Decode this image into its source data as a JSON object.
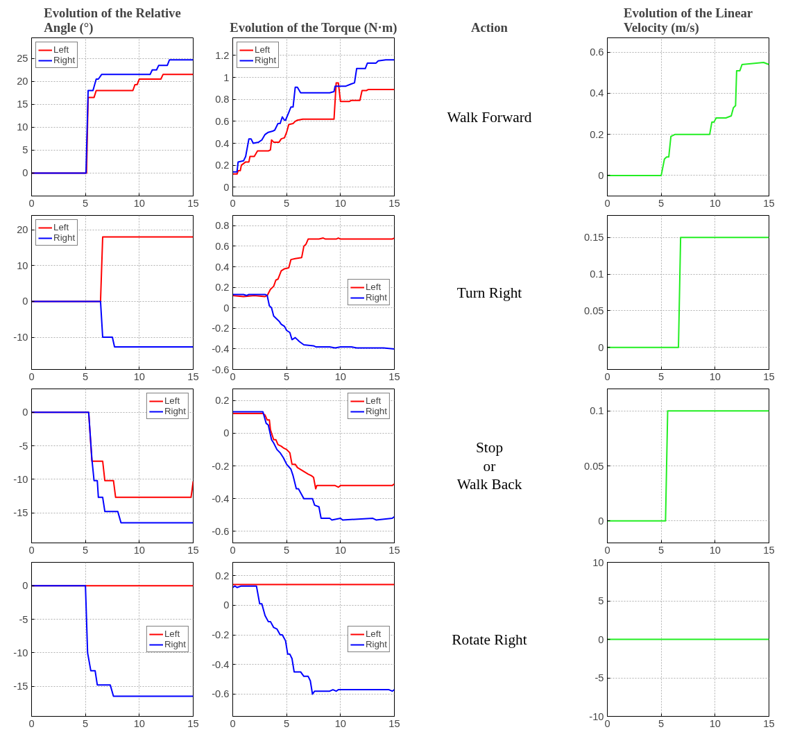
{
  "chart_data": [
    {
      "type": "line",
      "title": "Evolution of the Relative Angle (°)",
      "xlim": [
        0,
        15
      ],
      "xticks": [
        0,
        5,
        10,
        15
      ],
      "ylim": [
        -5,
        29.5
      ],
      "yticks": [
        0,
        5,
        10,
        15,
        20,
        25
      ],
      "grid": true,
      "legend": "top left",
      "series": [
        {
          "name": "Left",
          "color": "#ff0000",
          "x": [
            0,
            5,
            5.1,
            5.25,
            5.8,
            6,
            9.4,
            9.6,
            9.8,
            10,
            12,
            12.2,
            15
          ],
          "values": [
            0,
            0,
            0,
            16.5,
            16.5,
            18,
            18,
            19.3,
            19.3,
            20.5,
            20.5,
            21.5,
            21.5
          ]
        },
        {
          "name": "Right",
          "color": "#0000ff",
          "x": [
            0,
            5.05,
            5.25,
            5.7,
            6,
            6.2,
            6.5,
            11,
            11.2,
            11.6,
            11.8,
            12.6,
            12.8,
            15
          ],
          "values": [
            0,
            0,
            18,
            18,
            20.5,
            20.5,
            21.5,
            21.5,
            22.5,
            22.5,
            23.5,
            23.5,
            24.7,
            24.7
          ]
        }
      ]
    },
    {
      "type": "line",
      "title": "Evolution of the Torque (N·m)",
      "xlim": [
        0,
        15
      ],
      "xticks": [
        0,
        5,
        10,
        15
      ],
      "ylim": [
        -0.08,
        1.36
      ],
      "yticks": [
        0,
        0.2,
        0.4,
        0.6,
        0.8,
        1,
        1.2
      ],
      "grid": true,
      "legend": "top left",
      "series": [
        {
          "name": "Left",
          "color": "#ff0000",
          "x": [
            0,
            0.4,
            0.5,
            0.7,
            0.8,
            1.2,
            1.5,
            1.6,
            2,
            2.3,
            3.3,
            3.5,
            3.6,
            3.8,
            4.3,
            4.5,
            4.8,
            5,
            5.2,
            5.6,
            5.8,
            6,
            6.5,
            9.4,
            9.6,
            9.8,
            10,
            10.8,
            11,
            11.8,
            12,
            12.4,
            12.6,
            15
          ],
          "values": [
            0.12,
            0.12,
            0.15,
            0.15,
            0.2,
            0.23,
            0.23,
            0.28,
            0.28,
            0.33,
            0.33,
            0.34,
            0.43,
            0.41,
            0.41,
            0.44,
            0.45,
            0.5,
            0.57,
            0.58,
            0.6,
            0.61,
            0.62,
            0.62,
            0.95,
            0.95,
            0.78,
            0.78,
            0.79,
            0.79,
            0.88,
            0.88,
            0.89,
            0.89
          ]
        },
        {
          "name": "Right",
          "color": "#0000ff",
          "x": [
            0,
            0.4,
            0.5,
            1,
            1.2,
            1.5,
            1.7,
            1.9,
            2.4,
            2.7,
            3,
            3.3,
            3.7,
            3.9,
            4.2,
            4.4,
            4.6,
            4.8,
            4.9,
            5.2,
            5.4,
            5.6,
            5.8,
            6,
            6.3,
            7,
            8,
            9,
            9.4,
            9.5,
            10.5,
            11,
            11.3,
            11.5,
            12.3,
            12.5,
            13.3,
            13.5,
            14.2,
            15
          ],
          "values": [
            0.14,
            0.14,
            0.23,
            0.24,
            0.28,
            0.44,
            0.44,
            0.4,
            0.41,
            0.43,
            0.48,
            0.5,
            0.51,
            0.52,
            0.58,
            0.58,
            0.64,
            0.61,
            0.61,
            0.68,
            0.73,
            0.73,
            0.91,
            0.91,
            0.86,
            0.86,
            0.86,
            0.86,
            0.87,
            0.92,
            0.92,
            0.94,
            0.95,
            1.08,
            1.08,
            1.13,
            1.13,
            1.15,
            1.16,
            1.16
          ]
        }
      ]
    },
    {
      "type": "other",
      "title": "Action",
      "annotations": [
        "Walk Forward"
      ]
    },
    {
      "type": "line",
      "title": "Evolution of the Linear Velocity (m/s)",
      "xlim": [
        0,
        15
      ],
      "xticks": [
        0,
        5,
        10,
        15
      ],
      "ylim": [
        -0.1,
        0.67
      ],
      "yticks": [
        0,
        0.2,
        0.4,
        0.6
      ],
      "grid": true,
      "series": [
        {
          "color": "#22ee22",
          "x": [
            0,
            5,
            5.3,
            5.5,
            5.7,
            5.9,
            6.3,
            9.5,
            9.7,
            9.9,
            10.1,
            11,
            11.5,
            11.7,
            11.9,
            12,
            12.3,
            12.5,
            14.5,
            15
          ],
          "values": [
            0,
            0,
            0.08,
            0.09,
            0.09,
            0.19,
            0.2,
            0.2,
            0.26,
            0.26,
            0.28,
            0.28,
            0.29,
            0.33,
            0.34,
            0.51,
            0.51,
            0.54,
            0.55,
            0.54
          ]
        }
      ]
    },
    {
      "type": "line",
      "xlim": [
        0,
        15
      ],
      "xticks": [
        0,
        5,
        10,
        15
      ],
      "ylim": [
        -19,
        24
      ],
      "yticks": [
        -10,
        0,
        10,
        20
      ],
      "grid": true,
      "legend": "top left",
      "series": [
        {
          "name": "Left",
          "color": "#ff0000",
          "x": [
            0,
            6.4,
            6.6,
            15
          ],
          "values": [
            0,
            0,
            18,
            18
          ]
        },
        {
          "name": "Right",
          "color": "#0000ff",
          "x": [
            0,
            6.4,
            6.6,
            7.5,
            7.7,
            15
          ],
          "values": [
            0,
            0,
            -10,
            -10,
            -12.7,
            -12.7
          ]
        }
      ]
    },
    {
      "type": "line",
      "xlim": [
        0,
        15
      ],
      "xticks": [
        0,
        5,
        10,
        15
      ],
      "ylim": [
        -0.6,
        0.9
      ],
      "yticks": [
        -0.6,
        -0.4,
        -0.2,
        0,
        0.2,
        0.4,
        0.6,
        0.8
      ],
      "grid": true,
      "legend": "right",
      "series": [
        {
          "name": "Left",
          "color": "#ff0000",
          "x": [
            0,
            1,
            2,
            3,
            3.2,
            3.5,
            3.8,
            4,
            4.2,
            4.5,
            4.8,
            5.2,
            5.4,
            5.8,
            6.4,
            6.6,
            6.8,
            7,
            8,
            8.4,
            8.6,
            9.6,
            9.8,
            10,
            14.8,
            15
          ],
          "values": [
            0.12,
            0.11,
            0.12,
            0.11,
            0.12,
            0.18,
            0.21,
            0.27,
            0.28,
            0.36,
            0.38,
            0.39,
            0.47,
            0.48,
            0.49,
            0.6,
            0.62,
            0.67,
            0.67,
            0.68,
            0.67,
            0.67,
            0.68,
            0.67,
            0.67,
            0.68
          ]
        },
        {
          "name": "Right",
          "color": "#0000ff",
          "x": [
            0,
            1,
            1.3,
            1.5,
            3,
            3.2,
            3.4,
            3.6,
            3.8,
            4,
            4.3,
            4.5,
            4.8,
            5,
            5.3,
            5.5,
            5.8,
            6.2,
            6.6,
            7.5,
            7.7,
            9,
            9.5,
            10,
            11,
            11.5,
            13,
            14,
            15
          ],
          "values": [
            0.13,
            0.13,
            0.12,
            0.13,
            0.13,
            0.12,
            0.02,
            0,
            -0.08,
            -0.1,
            -0.13,
            -0.16,
            -0.18,
            -0.22,
            -0.24,
            -0.31,
            -0.29,
            -0.33,
            -0.36,
            -0.37,
            -0.38,
            -0.38,
            -0.39,
            -0.38,
            -0.38,
            -0.39,
            -0.39,
            -0.39,
            -0.4
          ]
        }
      ]
    },
    {
      "type": "other",
      "annotations": [
        "Turn Right"
      ]
    },
    {
      "type": "line",
      "xlim": [
        0,
        15
      ],
      "xticks": [
        0,
        5,
        10,
        15
      ],
      "ylim": [
        -0.03,
        0.18
      ],
      "yticks": [
        0,
        0.05,
        0.1,
        0.15
      ],
      "grid": true,
      "series": [
        {
          "color": "#22ee22",
          "x": [
            0,
            6.6,
            6.8,
            15
          ],
          "values": [
            0,
            0,
            0.15,
            0.15
          ]
        }
      ]
    },
    {
      "type": "line",
      "xlim": [
        0,
        15
      ],
      "xticks": [
        0,
        5,
        10,
        15
      ],
      "ylim": [
        -19.5,
        3.5
      ],
      "yticks": [
        -15,
        -10,
        -5,
        0
      ],
      "grid": true,
      "legend": "top right",
      "series": [
        {
          "name": "Left",
          "color": "#ff0000",
          "x": [
            0,
            5.3,
            5.6,
            6.6,
            6.8,
            7.6,
            7.8,
            14.8,
            15
          ],
          "values": [
            0,
            0,
            -7.3,
            -7.3,
            -10.2,
            -10.2,
            -12.7,
            -12.7,
            -10.3
          ]
        },
        {
          "name": "Right",
          "color": "#0000ff",
          "x": [
            0,
            5.3,
            5.6,
            5.8,
            6.1,
            6.2,
            6.6,
            6.8,
            8,
            8.3,
            15
          ],
          "values": [
            0,
            0,
            -7,
            -10.2,
            -10.2,
            -12.7,
            -12.7,
            -14.8,
            -14.8,
            -16.5,
            -16.5
          ]
        }
      ]
    },
    {
      "type": "line",
      "xlim": [
        0,
        15
      ],
      "xticks": [
        0,
        5,
        10,
        15
      ],
      "ylim": [
        -0.67,
        0.27
      ],
      "yticks": [
        -0.6,
        -0.4,
        -0.2,
        0,
        0.2
      ],
      "grid": true,
      "legend": "top right",
      "series": [
        {
          "name": "Left",
          "color": "#ff0000",
          "x": [
            0,
            2.8,
            3,
            3.2,
            3.4,
            3.5,
            3.8,
            4,
            4.2,
            4.5,
            4.7,
            5,
            5.3,
            5.5,
            5.8,
            6,
            6.5,
            7,
            7.3,
            7.5,
            7.7,
            7.8,
            9.5,
            9.8,
            10,
            14.8,
            15
          ],
          "values": [
            0.12,
            0.12,
            0.11,
            0.08,
            0.08,
            0.02,
            -0.04,
            -0.04,
            -0.07,
            -0.08,
            -0.09,
            -0.1,
            -0.12,
            -0.19,
            -0.19,
            -0.21,
            -0.23,
            -0.25,
            -0.26,
            -0.27,
            -0.34,
            -0.32,
            -0.32,
            -0.33,
            -0.32,
            -0.32,
            -0.31
          ]
        },
        {
          "name": "Right",
          "color": "#0000ff",
          "x": [
            0,
            2.8,
            3.1,
            3.3,
            3.6,
            3.8,
            4.1,
            4.4,
            4.7,
            5,
            5.4,
            5.6,
            5.9,
            6.1,
            6.6,
            7.4,
            7.6,
            8,
            8.2,
            9,
            9.2,
            10,
            10.2,
            13,
            13.3,
            14.8,
            15
          ],
          "values": [
            0.13,
            0.13,
            0.06,
            0.05,
            -0.04,
            -0.06,
            -0.1,
            -0.12,
            -0.15,
            -0.19,
            -0.22,
            -0.26,
            -0.34,
            -0.34,
            -0.4,
            -0.4,
            -0.44,
            -0.45,
            -0.52,
            -0.52,
            -0.53,
            -0.52,
            -0.53,
            -0.52,
            -0.53,
            -0.52,
            -0.51
          ]
        }
      ]
    },
    {
      "type": "other",
      "annotations": [
        "Stop",
        "or",
        "Walk Back"
      ]
    },
    {
      "type": "line",
      "xlim": [
        0,
        15
      ],
      "xticks": [
        0,
        5,
        10,
        15
      ],
      "ylim": [
        -0.02,
        0.12
      ],
      "yticks": [
        0,
        0.05,
        0.1
      ],
      "grid": true,
      "series": [
        {
          "color": "#22ee22",
          "x": [
            0,
            5.4,
            5.6,
            15
          ],
          "values": [
            0,
            0,
            0.1,
            0.1
          ]
        }
      ]
    },
    {
      "type": "line",
      "xlim": [
        0,
        15
      ],
      "xticks": [
        0,
        5,
        10,
        15
      ],
      "ylim": [
        -19.5,
        3.5
      ],
      "yticks": [
        -15,
        -10,
        -5,
        0
      ],
      "grid": true,
      "legend": "right",
      "series": [
        {
          "name": "Left",
          "color": "#ff0000",
          "x": [
            0,
            15
          ],
          "values": [
            0,
            0
          ]
        },
        {
          "name": "Right",
          "color": "#0000ff",
          "x": [
            0,
            5,
            5.2,
            5.5,
            5.9,
            6.1,
            7.3,
            7.6,
            15
          ],
          "values": [
            0,
            0,
            -10,
            -12.7,
            -12.7,
            -14.8,
            -14.8,
            -16.5,
            -16.5
          ]
        }
      ]
    },
    {
      "type": "line",
      "xlim": [
        0,
        15
      ],
      "xticks": [
        0,
        5,
        10,
        15
      ],
      "ylim": [
        -0.75,
        0.29
      ],
      "yticks": [
        -0.6,
        -0.4,
        -0.2,
        0,
        0.2
      ],
      "grid": true,
      "legend": "right",
      "series": [
        {
          "name": "Left",
          "color": "#ff0000",
          "x": [
            0,
            15
          ],
          "values": [
            0.14,
            0.14
          ]
        },
        {
          "name": "Right",
          "color": "#0000ff",
          "x": [
            0,
            0.2,
            0.4,
            0.8,
            2.2,
            2.5,
            2.7,
            3,
            3.3,
            3.5,
            3.8,
            4.1,
            4.4,
            4.6,
            4.9,
            5.1,
            5.3,
            5.5,
            5.7,
            6.3,
            6.6,
            7,
            7.2,
            7.4,
            7.6,
            9,
            9.3,
            9.6,
            9.8,
            14.5,
            14.8,
            15
          ],
          "values": [
            0.12,
            0.13,
            0.12,
            0.13,
            0.13,
            0.01,
            0.01,
            -0.07,
            -0.11,
            -0.11,
            -0.15,
            -0.16,
            -0.2,
            -0.2,
            -0.24,
            -0.33,
            -0.33,
            -0.36,
            -0.45,
            -0.45,
            -0.48,
            -0.48,
            -0.51,
            -0.6,
            -0.58,
            -0.58,
            -0.57,
            -0.58,
            -0.57,
            -0.57,
            -0.58,
            -0.57
          ]
        }
      ]
    },
    {
      "type": "other",
      "annotations": [
        "Rotate Right"
      ]
    },
    {
      "type": "line",
      "xlim": [
        0,
        15
      ],
      "xticks": [
        0,
        5,
        10,
        15
      ],
      "ylim": [
        -10,
        10
      ],
      "yticks": [
        -10,
        -5,
        0,
        5,
        10
      ],
      "grid": true,
      "series": [
        {
          "color": "#22ee22",
          "x": [
            0,
            15
          ],
          "values": [
            0,
            0
          ]
        }
      ]
    }
  ]
}
